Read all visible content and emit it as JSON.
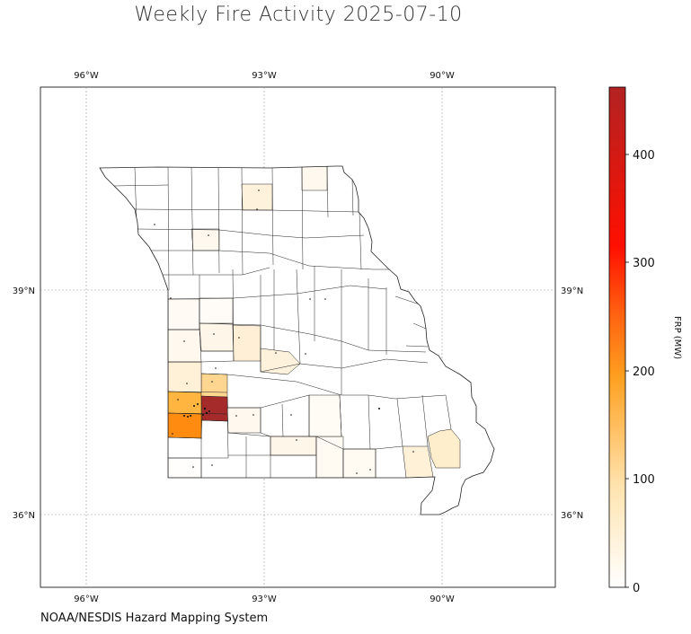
{
  "title": "Weekly Fire Activity 2025-07-10",
  "credit": "NOAA/NESDIS Hazard Mapping System",
  "colorbar": {
    "label": "FRP (MW)",
    "min": 0,
    "max": 460,
    "ticks": [
      "0",
      "100",
      "200",
      "300",
      "400"
    ],
    "colors": [
      "#ffffff",
      "#ffe4b0",
      "#ffa020",
      "#ff6010",
      "#ff1000",
      "#b22222"
    ]
  },
  "map": {
    "lon_range": [
      -96.75,
      -88.1
    ],
    "lat_range": [
      34.95,
      41.65
    ],
    "top_lon_labels": [
      "96°W",
      "93°W",
      "90°W"
    ],
    "bottom_lon_labels": [
      "96°W",
      "93°W",
      "90°W"
    ],
    "left_lat_labels": [
      "39°N",
      "36°N"
    ],
    "right_lat_labels": [
      "39°N",
      "36°N"
    ]
  }
}
